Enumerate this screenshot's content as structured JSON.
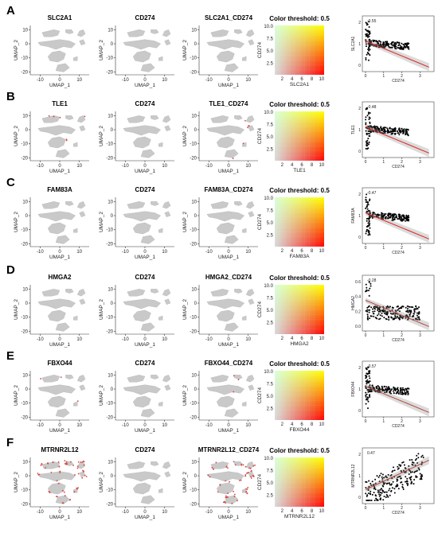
{
  "figure": {
    "panels": [
      {
        "label": "A",
        "gene": "SLC2A1",
        "cd": "CD274",
        "combo": "SLC2A1_CD274",
        "stat": "R = -0.55 , p < 2.2 x 10^(-16)"
      },
      {
        "label": "B",
        "gene": "TLE1",
        "cd": "CD274",
        "combo": "TLE1_CD274",
        "stat": "R = -0.48 , p < 2.2 x 10^(-16)"
      },
      {
        "label": "C",
        "gene": "FAM83A",
        "cd": "CD274",
        "combo": "FAM83A_CD274",
        "stat": "R = -0.47 , p < 2.2 x 10^(-16)"
      },
      {
        "label": "D",
        "gene": "HMGA2",
        "cd": "CD274",
        "combo": "HMGA2_CD274",
        "stat": "R = -0.28 , p = 1.2 x 10^(-8)"
      },
      {
        "label": "E",
        "gene": "FBXO44",
        "cd": "CD274",
        "combo": "FBXO44_CD274",
        "stat": "R = -0.57 , p < 2.2 x 10^(-16)"
      },
      {
        "label": "F",
        "gene": "MTRNR2L12",
        "cd": "CD274",
        "combo": "MTRNR2L12_CD274",
        "stat": "R = 0.47 , p = 6.5 x 10^(-12)"
      }
    ],
    "color_threshold_title": "Color threshold: 0.5",
    "umap_xlabel": "UMAP_1",
    "umap_ylabel": "UMAP_2",
    "umap_xticks": [
      "-10",
      "0",
      "10"
    ],
    "umap_yticks": [
      "10",
      "0",
      "-10",
      "-20"
    ],
    "heat_yticks": [
      "10.0",
      "7.5",
      "5.0",
      "2.5"
    ],
    "heat_xticks": [
      "2",
      "4",
      "6",
      "8",
      "10"
    ]
  },
  "chart_data": {
    "type": "scatter",
    "panels": [
      {
        "panel": "A",
        "x_label": "CD274",
        "y_label": "SLC2A1",
        "R": -0.55,
        "p": "< 2.2e-16",
        "x_ticks": [
          0,
          1,
          2,
          3
        ],
        "trend": "negative"
      },
      {
        "panel": "B",
        "x_label": "CD274",
        "y_label": "TLE1",
        "R": -0.48,
        "p": "< 2.2e-16",
        "x_ticks": [
          0,
          1,
          2,
          3
        ],
        "trend": "negative"
      },
      {
        "panel": "C",
        "x_label": "CD274",
        "y_label": "FAM83A",
        "R": -0.47,
        "p": "< 2.2e-16",
        "x_ticks": [
          0,
          1,
          2,
          3
        ],
        "trend": "negative"
      },
      {
        "panel": "D",
        "x_label": "CD274",
        "y_label": "HMGA2",
        "R": -0.28,
        "p": "1.2e-8",
        "x_ticks": [
          0,
          1,
          2,
          3
        ],
        "y_ticks": [
          0.0,
          0.2,
          0.4,
          0.6
        ],
        "trend": "negative"
      },
      {
        "panel": "E",
        "x_label": "CD274",
        "y_label": "FBXO44",
        "R": -0.57,
        "p": "< 2.2e-16",
        "x_ticks": [
          0,
          1,
          2,
          3
        ],
        "trend": "negative"
      },
      {
        "panel": "F",
        "x_label": "CD274",
        "y_label": "MTRNR2L12",
        "R": 0.47,
        "p": "6.5e-12",
        "x_ticks": [
          0,
          1,
          2,
          3
        ],
        "trend": "positive"
      }
    ]
  }
}
